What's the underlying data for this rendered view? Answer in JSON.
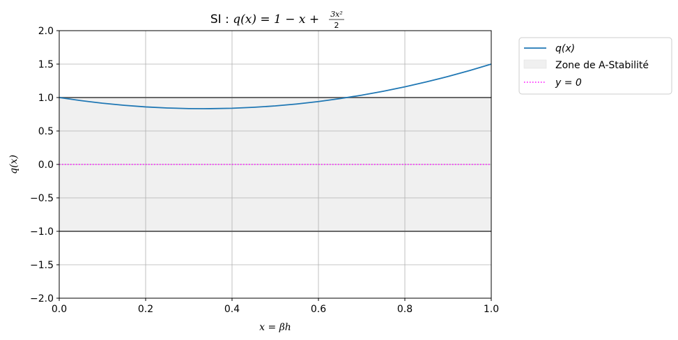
{
  "chart_data": {
    "type": "line",
    "title": {
      "prefix": "SI : ",
      "lhs": "q(x) = 1 − x + ",
      "frac_num": "3x²",
      "frac_den": "2"
    },
    "xlabel": "x = βh",
    "ylabel": "q(x)",
    "xlim": [
      0.0,
      1.0
    ],
    "ylim": [
      -2.0,
      2.0
    ],
    "xticks": [
      0.0,
      0.2,
      0.4,
      0.6,
      0.8,
      1.0
    ],
    "xtick_labels": [
      "0.0",
      "0.2",
      "0.4",
      "0.6",
      "0.8",
      "1.0"
    ],
    "yticks": [
      -2.0,
      -1.5,
      -1.0,
      -0.5,
      0.0,
      0.5,
      1.0,
      1.5,
      2.0
    ],
    "ytick_labels": [
      "−2.0",
      "−1.5",
      "−1.0",
      "−0.5",
      "0.0",
      "0.5",
      "1.0",
      "1.5",
      "2.0"
    ],
    "grid": true,
    "legend_position": "outside-top-right",
    "series": [
      {
        "name": "q(x)",
        "color": "#1f77b4",
        "style": "solid",
        "x": [
          0.0,
          0.05,
          0.1,
          0.15,
          0.2,
          0.25,
          0.3,
          0.333,
          0.35,
          0.4,
          0.45,
          0.5,
          0.55,
          0.6,
          0.65,
          0.7,
          0.75,
          0.8,
          0.85,
          0.9,
          0.95,
          1.0
        ],
        "y": [
          1.0,
          0.954,
          0.915,
          0.884,
          0.86,
          0.844,
          0.835,
          0.833,
          0.834,
          0.84,
          0.854,
          0.875,
          0.904,
          0.94,
          0.984,
          1.035,
          1.094,
          1.16,
          1.234,
          1.315,
          1.404,
          1.5
        ]
      },
      {
        "name": "y = 0",
        "color": "#ff00ff",
        "style": "dotted",
        "x": [
          0.0,
          1.0
        ],
        "y": [
          0.0,
          0.0
        ]
      }
    ],
    "region": {
      "name": "Zone de A-Stabilité",
      "y_range": [
        -1.0,
        1.0
      ],
      "fill_color": "#f0f0f0",
      "border_color": "#555555"
    }
  }
}
